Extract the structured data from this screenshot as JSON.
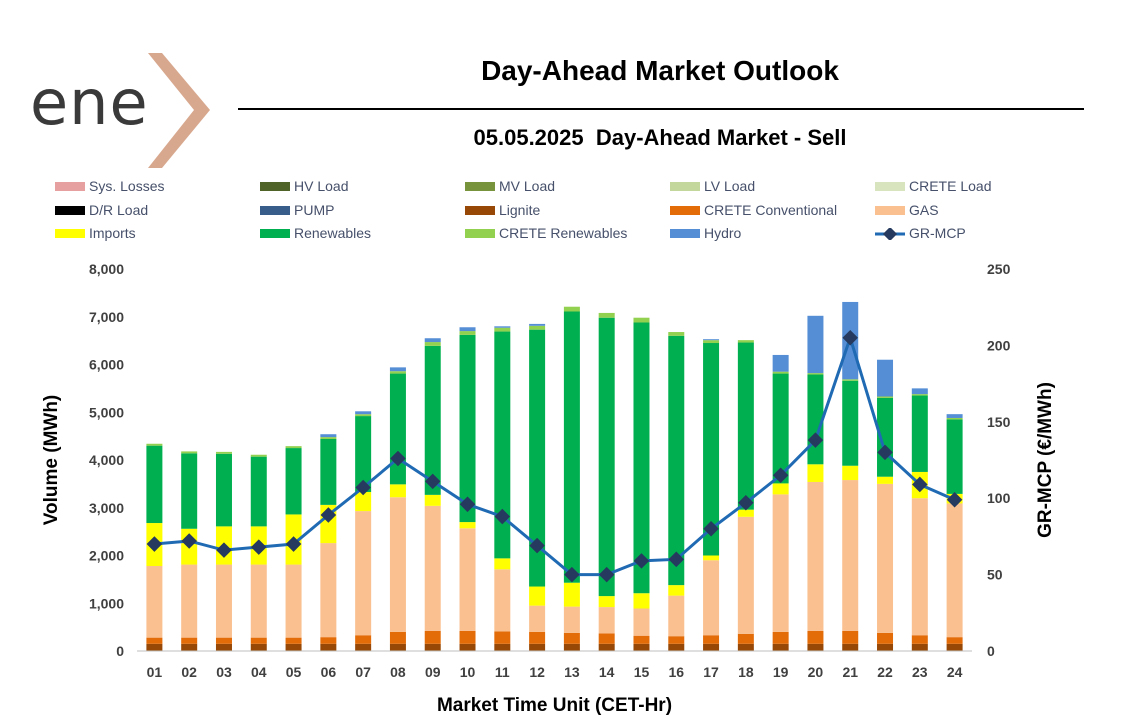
{
  "page": {
    "logo_text": "ene",
    "title": "Day-Ahead Market Outlook",
    "subtitle": "05.05.2025  Day-Ahead Market - Sell"
  },
  "colors": {
    "logo_chevron": "#d8a88e",
    "mcp_line": "#1f6ab3",
    "mcp_marker": "#253a5e"
  },
  "chart_data": {
    "type": "bar",
    "stacked": true,
    "title": "05.05.2025  Day-Ahead Market - Sell",
    "xlabel": "Market Time Unit (CET-Hr)",
    "ylabel": "Volume (MWh)",
    "y2label": "GR-MCP (€/MWh)",
    "ylim": [
      0,
      8000
    ],
    "y2lim": [
      0,
      250
    ],
    "yticks": [
      "0",
      "1,000",
      "2,000",
      "3,000",
      "4,000",
      "5,000",
      "6,000",
      "7,000",
      "8,000"
    ],
    "y2ticks": [
      "0",
      "50",
      "100",
      "150",
      "200",
      "250"
    ],
    "categories": [
      "01",
      "02",
      "03",
      "04",
      "05",
      "06",
      "07",
      "08",
      "09",
      "10",
      "11",
      "12",
      "13",
      "14",
      "15",
      "16",
      "17",
      "18",
      "19",
      "20",
      "21",
      "22",
      "23",
      "24"
    ],
    "legend": [
      {
        "name": "Sys. Losses",
        "color": "#e6a0a0",
        "kind": "bar"
      },
      {
        "name": "HV Load",
        "color": "#4f6228",
        "kind": "bar"
      },
      {
        "name": "MV Load",
        "color": "#77933c",
        "kind": "bar"
      },
      {
        "name": "LV Load",
        "color": "#c3d69b",
        "kind": "bar"
      },
      {
        "name": "CRETE Load",
        "color": "#d7e4bd",
        "kind": "bar"
      },
      {
        "name": "D/R Load",
        "color": "#000000",
        "kind": "bar"
      },
      {
        "name": "PUMP",
        "color": "#385d8a",
        "kind": "bar"
      },
      {
        "name": "Lignite",
        "color": "#974806",
        "kind": "bar"
      },
      {
        "name": "CRETE Conventional",
        "color": "#e36c09",
        "kind": "bar"
      },
      {
        "name": "GAS",
        "color": "#fac090",
        "kind": "bar"
      },
      {
        "name": "Imports",
        "color": "#ffff00",
        "kind": "bar"
      },
      {
        "name": "Renewables",
        "color": "#00b050",
        "kind": "bar"
      },
      {
        "name": "CRETE Renewables",
        "color": "#92d050",
        "kind": "bar"
      },
      {
        "name": "Hydro",
        "color": "#558ed5",
        "kind": "bar"
      },
      {
        "name": "GR-MCP",
        "color": "#1f6ab3",
        "kind": "line"
      }
    ],
    "series": [
      {
        "name": "Lignite",
        "color": "#974806",
        "values": [
          150,
          150,
          150,
          150,
          150,
          150,
          150,
          150,
          150,
          150,
          150,
          150,
          150,
          150,
          150,
          150,
          150,
          150,
          150,
          150,
          150,
          150,
          150,
          150
        ]
      },
      {
        "name": "CRETE Conventional",
        "color": "#e36c09",
        "values": [
          130,
          130,
          130,
          130,
          130,
          140,
          180,
          250,
          270,
          270,
          260,
          250,
          230,
          220,
          170,
          160,
          180,
          210,
          250,
          270,
          270,
          230,
          180,
          140
        ]
      },
      {
        "name": "GAS",
        "color": "#fac090",
        "values": [
          1500,
          1530,
          1530,
          1530,
          1530,
          1970,
          2600,
          2820,
          2620,
          2150,
          1300,
          550,
          550,
          550,
          570,
          850,
          1570,
          2450,
          2880,
          3120,
          3160,
          3120,
          2870,
          2800
        ]
      },
      {
        "name": "Imports",
        "color": "#ffff00",
        "values": [
          900,
          750,
          800,
          800,
          1050,
          800,
          400,
          270,
          230,
          130,
          230,
          400,
          500,
          230,
          320,
          220,
          100,
          150,
          230,
          370,
          300,
          150,
          550,
          200
        ]
      },
      {
        "name": "Renewables",
        "color": "#00b050",
        "values": [
          1620,
          1580,
          1520,
          1460,
          1390,
          1380,
          1590,
          2320,
          3120,
          3920,
          4750,
          5380,
          5680,
          5830,
          5670,
          5220,
          4450,
          3500,
          2300,
          1880,
          1780,
          1650,
          1600,
          1560
        ]
      },
      {
        "name": "CRETE Renewables",
        "color": "#92d050",
        "values": [
          40,
          40,
          40,
          40,
          40,
          40,
          40,
          50,
          80,
          80,
          80,
          80,
          100,
          100,
          100,
          80,
          60,
          50,
          40,
          30,
          30,
          30,
          30,
          30
        ]
      },
      {
        "name": "Hydro",
        "color": "#558ed5",
        "values": [
          0,
          0,
          0,
          0,
          0,
          60,
          60,
          80,
          80,
          80,
          30,
          40,
          0,
          0,
          0,
          0,
          20,
          0,
          350,
          1200,
          1620,
          770,
          120,
          80
        ]
      }
    ],
    "line": {
      "name": "GR-MCP",
      "axis": "right",
      "values": [
        70,
        72,
        66,
        68,
        70,
        89,
        107,
        126,
        111,
        96,
        88,
        69,
        50,
        50,
        59,
        60,
        80,
        97,
        115,
        138,
        205,
        130,
        109,
        99
      ]
    }
  }
}
